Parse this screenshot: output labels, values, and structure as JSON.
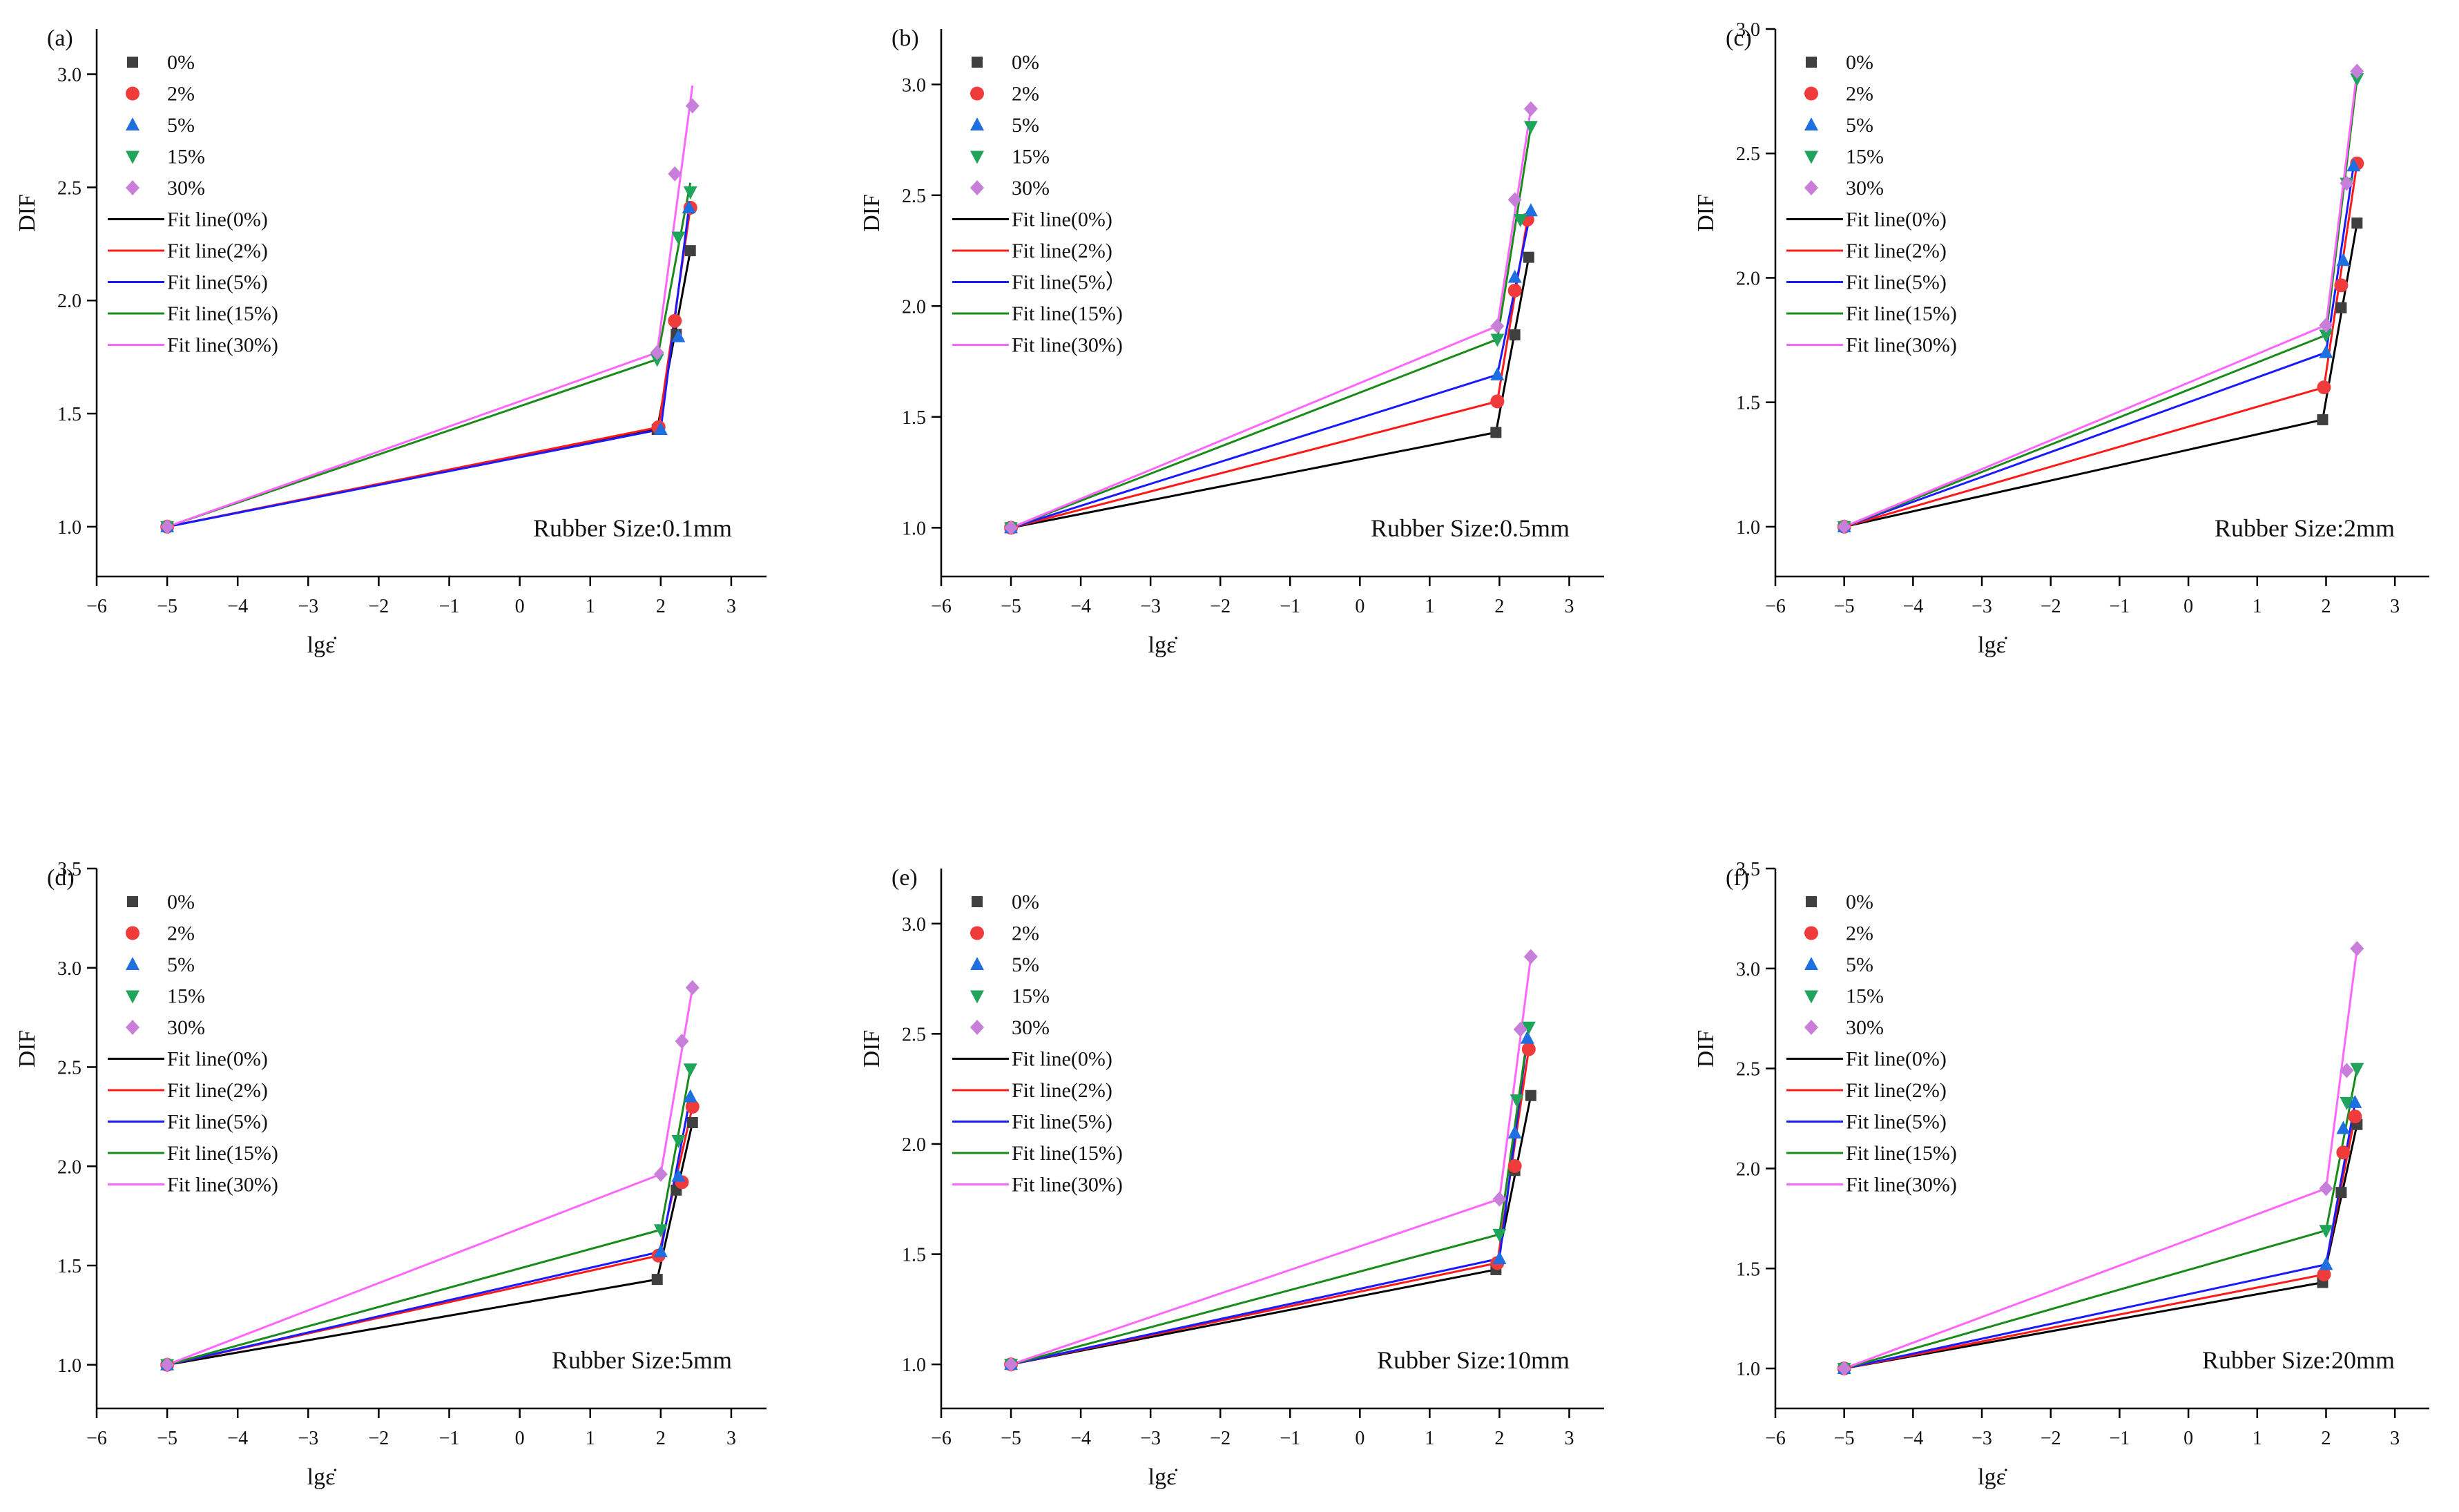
{
  "figure": {
    "markers": {
      "0%": {
        "shape": "square",
        "color": "#3f3f3f"
      },
      "2%": {
        "shape": "circle",
        "color": "#ef3b3b"
      },
      "5%": {
        "shape": "triangle-up",
        "color": "#1e6fe0"
      },
      "15%": {
        "shape": "triangle-down",
        "color": "#1fa45c"
      },
      "30%": {
        "shape": "diamond",
        "color": "#c77fd9"
      }
    },
    "line_colors": {
      "0%": "#000000",
      "2%": "#ff1a1a",
      "5%": "#1a1aff",
      "15%": "#1a8a1a",
      "30%": "#ff66ff"
    }
  },
  "chart_data": [
    {
      "type": "scatter",
      "panel": "(a)",
      "annotation": "Rubber Size:0.1mm",
      "xlabel": "lgε̇",
      "ylabel": "DIF",
      "xlim": [
        -6,
        3.5
      ],
      "ylim": [
        0.78,
        3.2
      ],
      "xticks": [
        -6,
        -5,
        -4,
        -3,
        -2,
        -1,
        0,
        1,
        2,
        3
      ],
      "yticks": [
        1.0,
        1.5,
        2.0,
        2.5,
        3.0
      ],
      "legend_markers": [
        "0%",
        "2%",
        "5%",
        "15%",
        "30%"
      ],
      "legend_lines": [
        "Fit line(0%)",
        "Fit line(2%)",
        "Fit line(5%)",
        "Fit line(15%)",
        "Fit line(30%)"
      ],
      "series": [
        {
          "name": "0%",
          "x": [
            -5,
            1.95,
            2.22,
            2.42
          ],
          "y": [
            1.0,
            1.43,
            1.85,
            2.22
          ],
          "fit": [
            [
              -5,
              1.0
            ],
            [
              1.95,
              1.43
            ],
            [
              2.42,
              2.22
            ]
          ]
        },
        {
          "name": "2%",
          "x": [
            -5,
            1.97,
            2.2,
            2.42
          ],
          "y": [
            1.0,
            1.44,
            1.91,
            2.41
          ],
          "fit": [
            [
              -5,
              1.0
            ],
            [
              1.97,
              1.44
            ],
            [
              2.42,
              2.41
            ]
          ]
        },
        {
          "name": "5%",
          "x": [
            -5,
            2.0,
            2.25,
            2.4
          ],
          "y": [
            1.0,
            1.43,
            1.84,
            2.41
          ],
          "fit": [
            [
              -5,
              1.0
            ],
            [
              2.0,
              1.43
            ],
            [
              2.4,
              2.41
            ]
          ]
        },
        {
          "name": "15%",
          "x": [
            -5,
            1.95,
            2.25,
            2.42
          ],
          "y": [
            1.0,
            1.74,
            2.28,
            2.48
          ],
          "fit": [
            [
              -5,
              1.0
            ],
            [
              1.95,
              1.74
            ],
            [
              2.42,
              2.52
            ]
          ]
        },
        {
          "name": "30%",
          "x": [
            -5,
            1.95,
            2.2,
            2.45
          ],
          "y": [
            1.0,
            1.77,
            2.56,
            2.86
          ],
          "fit": [
            [
              -5,
              1.0
            ],
            [
              1.95,
              1.77
            ],
            [
              2.45,
              2.95
            ]
          ]
        }
      ]
    },
    {
      "type": "scatter",
      "panel": "(b)",
      "annotation": "Rubber Size:0.5mm",
      "xlabel": "lgε̇",
      "ylabel": "DIF",
      "xlim": [
        -6,
        3.5
      ],
      "ylim": [
        0.78,
        3.25
      ],
      "xticks": [
        -6,
        -5,
        -4,
        -3,
        -2,
        -1,
        0,
        1,
        2,
        3
      ],
      "yticks": [
        1.0,
        1.5,
        2.0,
        2.5,
        3.0
      ],
      "legend_markers": [
        "0%",
        "2%",
        "5%",
        "15%",
        "30%"
      ],
      "legend_lines": [
        "Fit line(0%)",
        "Fit line(2%)",
        "Fit line(5%）",
        "Fit line(15%)",
        "Fit line(30%)"
      ],
      "series": [
        {
          "name": "0%",
          "x": [
            -5,
            1.95,
            2.22,
            2.42
          ],
          "y": [
            1.0,
            1.43,
            1.87,
            2.22
          ],
          "fit": [
            [
              -5,
              1.0
            ],
            [
              1.95,
              1.43
            ],
            [
              2.42,
              2.22
            ]
          ]
        },
        {
          "name": "2%",
          "x": [
            -5,
            1.97,
            2.22,
            2.4
          ],
          "y": [
            1.0,
            1.57,
            2.07,
            2.39
          ],
          "fit": [
            [
              -5,
              1.0
            ],
            [
              1.97,
              1.57
            ],
            [
              2.4,
              2.39
            ]
          ]
        },
        {
          "name": "5%",
          "x": [
            -5,
            1.97,
            2.22,
            2.45
          ],
          "y": [
            1.0,
            1.69,
            2.13,
            2.43
          ],
          "fit": [
            [
              -5,
              1.0
            ],
            [
              1.97,
              1.69
            ],
            [
              2.45,
              2.43
            ]
          ]
        },
        {
          "name": "15%",
          "x": [
            -5,
            1.97,
            2.3,
            2.45
          ],
          "y": [
            1.0,
            1.85,
            2.39,
            2.81
          ],
          "fit": [
            [
              -5,
              1.0
            ],
            [
              1.97,
              1.85
            ],
            [
              2.45,
              2.81
            ]
          ]
        },
        {
          "name": "30%",
          "x": [
            -5,
            1.97,
            2.22,
            2.45
          ],
          "y": [
            1.0,
            1.91,
            2.48,
            2.89
          ],
          "fit": [
            [
              -5,
              1.0
            ],
            [
              1.97,
              1.91
            ],
            [
              2.45,
              2.89
            ]
          ]
        }
      ]
    },
    {
      "type": "scatter",
      "panel": "(c)",
      "annotation": "Rubber Size:2mm",
      "xlabel": "lgε̇",
      "ylabel": "DIF",
      "xlim": [
        -6,
        3.5
      ],
      "ylim": [
        0.8,
        3.0
      ],
      "xticks": [
        -6,
        -5,
        -4,
        -3,
        -2,
        -1,
        0,
        1,
        2,
        3
      ],
      "yticks": [
        1.0,
        1.5,
        2.0,
        2.5,
        3.0
      ],
      "legend_markers": [
        "0%",
        "2%",
        "5%",
        "15%",
        "30%"
      ],
      "legend_lines": [
        "Fit line(0%)",
        "Fit line(2%)",
        "Fit line(5%)",
        "Fit line(15%)",
        "Fit line(30%)"
      ],
      "series": [
        {
          "name": "0%",
          "x": [
            -5,
            1.95,
            2.22,
            2.45
          ],
          "y": [
            1.0,
            1.43,
            1.88,
            2.22
          ],
          "fit": [
            [
              -5,
              1.0
            ],
            [
              1.95,
              1.43
            ],
            [
              2.45,
              2.22
            ]
          ]
        },
        {
          "name": "2%",
          "x": [
            -5,
            1.97,
            2.22,
            2.45
          ],
          "y": [
            1.0,
            1.56,
            1.97,
            2.46
          ],
          "fit": [
            [
              -5,
              1.0
            ],
            [
              1.97,
              1.56
            ],
            [
              2.45,
              2.46
            ]
          ]
        },
        {
          "name": "5%",
          "x": [
            -5,
            2.0,
            2.25,
            2.4
          ],
          "y": [
            1.0,
            1.7,
            2.07,
            2.45
          ],
          "fit": [
            [
              -5,
              1.0
            ],
            [
              2.0,
              1.7
            ],
            [
              2.4,
              2.45
            ]
          ]
        },
        {
          "name": "15%",
          "x": [
            -5,
            2.0,
            2.3,
            2.45
          ],
          "y": [
            1.0,
            1.77,
            2.38,
            2.8
          ],
          "fit": [
            [
              -5,
              1.0
            ],
            [
              2.0,
              1.77
            ],
            [
              2.45,
              2.8
            ]
          ]
        },
        {
          "name": "30%",
          "x": [
            -5,
            2.0,
            2.3,
            2.45
          ],
          "y": [
            1.0,
            1.81,
            2.38,
            2.83
          ],
          "fit": [
            [
              -5,
              1.0
            ],
            [
              2.0,
              1.81
            ],
            [
              2.45,
              2.83
            ]
          ]
        }
      ]
    },
    {
      "type": "scatter",
      "panel": "(d)",
      "annotation": "Rubber Size:5mm",
      "xlabel": "lgε̇",
      "ylabel": "DIF",
      "xlim": [
        -6,
        3.5
      ],
      "ylim": [
        0.78,
        3.5
      ],
      "xticks": [
        -6,
        -5,
        -4,
        -3,
        -2,
        -1,
        0,
        1,
        2,
        3
      ],
      "yticks": [
        1.0,
        1.5,
        2.0,
        2.5,
        3.0,
        3.5
      ],
      "legend_markers": [
        "0%",
        "2%",
        "5%",
        "15%",
        "30%"
      ],
      "legend_lines": [
        "Fit line(0%)",
        "Fit line(2%)",
        "Fit line(5%)",
        "Fit line(15%)",
        "Fit line(30%)"
      ],
      "series": [
        {
          "name": "0%",
          "x": [
            -5,
            1.95,
            2.22,
            2.45
          ],
          "y": [
            1.0,
            1.43,
            1.88,
            2.22
          ],
          "fit": [
            [
              -5,
              1.0
            ],
            [
              1.95,
              1.43
            ],
            [
              2.45,
              2.22
            ]
          ]
        },
        {
          "name": "2%",
          "x": [
            -5,
            1.97,
            2.3,
            2.45
          ],
          "y": [
            1.0,
            1.55,
            1.92,
            2.3
          ],
          "fit": [
            [
              -5,
              1.0
            ],
            [
              1.97,
              1.55
            ],
            [
              2.45,
              2.3
            ]
          ]
        },
        {
          "name": "5%",
          "x": [
            -5,
            2.0,
            2.25,
            2.42
          ],
          "y": [
            1.0,
            1.57,
            1.95,
            2.35
          ],
          "fit": [
            [
              -5,
              1.0
            ],
            [
              2.0,
              1.57
            ],
            [
              2.42,
              2.35
            ]
          ]
        },
        {
          "name": "15%",
          "x": [
            -5,
            2.0,
            2.25,
            2.42
          ],
          "y": [
            1.0,
            1.68,
            2.13,
            2.49
          ],
          "fit": [
            [
              -5,
              1.0
            ],
            [
              2.0,
              1.68
            ],
            [
              2.42,
              2.49
            ]
          ]
        },
        {
          "name": "30%",
          "x": [
            -5,
            2.0,
            2.3,
            2.45
          ],
          "y": [
            1.0,
            1.96,
            2.63,
            2.9
          ],
          "fit": [
            [
              -5,
              1.0
            ],
            [
              2.0,
              1.96
            ],
            [
              2.45,
              2.9
            ]
          ]
        }
      ]
    },
    {
      "type": "scatter",
      "panel": "(e)",
      "annotation": "Rubber Size:10mm",
      "xlabel": "lgε̇",
      "ylabel": "DIF",
      "xlim": [
        -6,
        3.5
      ],
      "ylim": [
        0.8,
        3.25
      ],
      "xticks": [
        -6,
        -5,
        -4,
        -3,
        -2,
        -1,
        0,
        1,
        2,
        3
      ],
      "yticks": [
        1.0,
        1.5,
        2.0,
        2.5,
        3.0
      ],
      "legend_markers": [
        "0%",
        "2%",
        "5%",
        "15%",
        "30%"
      ],
      "legend_lines": [
        "Fit line(0%)",
        "Fit line(2%)",
        "Fit line(5%)",
        "Fit line(15%)",
        "Fit line(30%)"
      ],
      "series": [
        {
          "name": "0%",
          "x": [
            -5,
            1.95,
            2.22,
            2.45
          ],
          "y": [
            1.0,
            1.43,
            1.88,
            2.22
          ],
          "fit": [
            [
              -5,
              1.0
            ],
            [
              1.95,
              1.43
            ],
            [
              2.45,
              2.22
            ]
          ]
        },
        {
          "name": "2%",
          "x": [
            -5,
            1.97,
            2.22,
            2.42
          ],
          "y": [
            1.0,
            1.46,
            1.9,
            2.43
          ],
          "fit": [
            [
              -5,
              1.0
            ],
            [
              1.97,
              1.46
            ],
            [
              2.42,
              2.43
            ]
          ]
        },
        {
          "name": "5%",
          "x": [
            -5,
            2.0,
            2.22,
            2.4
          ],
          "y": [
            1.0,
            1.48,
            2.05,
            2.48
          ],
          "fit": [
            [
              -5,
              1.0
            ],
            [
              2.0,
              1.48
            ],
            [
              2.4,
              2.48
            ]
          ]
        },
        {
          "name": "15%",
          "x": [
            -5,
            2.0,
            2.25,
            2.42
          ],
          "y": [
            1.0,
            1.59,
            2.2,
            2.53
          ],
          "fit": [
            [
              -5,
              1.0
            ],
            [
              2.0,
              1.59
            ],
            [
              2.42,
              2.53
            ]
          ]
        },
        {
          "name": "30%",
          "x": [
            -5,
            2.0,
            2.3,
            2.45
          ],
          "y": [
            1.0,
            1.75,
            2.52,
            2.85
          ],
          "fit": [
            [
              -5,
              1.0
            ],
            [
              2.0,
              1.75
            ],
            [
              2.45,
              2.85
            ]
          ]
        }
      ]
    },
    {
      "type": "scatter",
      "panel": "(f)",
      "annotation": "Rubber Size:20mm",
      "xlabel": "lgε̇",
      "ylabel": "DIF",
      "xlim": [
        -6,
        3.5
      ],
      "ylim": [
        0.8,
        3.5
      ],
      "xticks": [
        -6,
        -5,
        -4,
        -3,
        -2,
        -1,
        0,
        1,
        2,
        3
      ],
      "yticks": [
        1.0,
        1.5,
        2.0,
        2.5,
        3.0,
        3.5
      ],
      "legend_markers": [
        "0%",
        "2%",
        "5%",
        "15%",
        "30%"
      ],
      "legend_lines": [
        "Fit line(0%)",
        "Fit line(2%)",
        "Fit line(5%)",
        "Fit line(15%)",
        "Fit line(30%)"
      ],
      "series": [
        {
          "name": "0%",
          "x": [
            -5,
            1.95,
            2.22,
            2.45
          ],
          "y": [
            1.0,
            1.43,
            1.88,
            2.22
          ],
          "fit": [
            [
              -5,
              1.0
            ],
            [
              1.95,
              1.43
            ],
            [
              2.45,
              2.22
            ]
          ]
        },
        {
          "name": "2%",
          "x": [
            -5,
            1.97,
            2.25,
            2.42
          ],
          "y": [
            1.0,
            1.47,
            2.08,
            2.26
          ],
          "fit": [
            [
              -5,
              1.0
            ],
            [
              1.97,
              1.47
            ],
            [
              2.42,
              2.26
            ]
          ]
        },
        {
          "name": "5%",
          "x": [
            -5,
            2.0,
            2.25,
            2.42
          ],
          "y": [
            1.0,
            1.52,
            2.2,
            2.33
          ],
          "fit": [
            [
              -5,
              1.0
            ],
            [
              2.0,
              1.52
            ],
            [
              2.42,
              2.33
            ]
          ]
        },
        {
          "name": "15%",
          "x": [
            -5,
            2.0,
            2.3,
            2.45
          ],
          "y": [
            1.0,
            1.69,
            2.33,
            2.5
          ],
          "fit": [
            [
              -5,
              1.0
            ],
            [
              2.0,
              1.69
            ],
            [
              2.45,
              2.5
            ]
          ]
        },
        {
          "name": "30%",
          "x": [
            -5,
            2.0,
            2.3,
            2.45
          ],
          "y": [
            1.0,
            1.9,
            2.49,
            3.1
          ],
          "fit": [
            [
              -5,
              1.0
            ],
            [
              2.0,
              1.9
            ],
            [
              2.45,
              3.1
            ]
          ]
        }
      ]
    }
  ]
}
